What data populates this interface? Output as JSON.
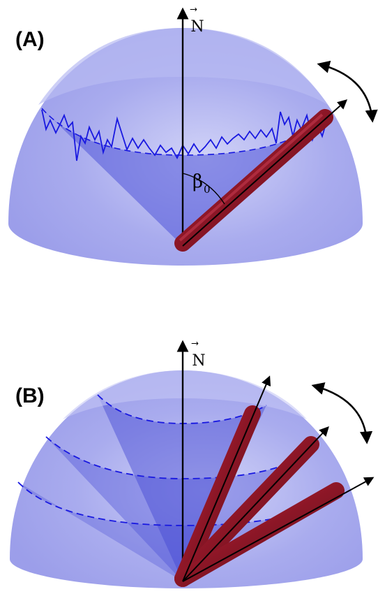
{
  "panel_a": {
    "label": "(A)",
    "axis_label": "N",
    "angle_label": "β",
    "angle_subscript": "0"
  },
  "panel_b": {
    "label": "(B)",
    "axis_label": "N"
  },
  "colors": {
    "hemisphere": "#8f92ea",
    "cone": "#5055d8",
    "rod": "#8a1626",
    "trajectory": "#1818e0",
    "arrows": "#000000"
  },
  "icons": [
    "north-arrow-icon",
    "rotation-arrow-icon"
  ]
}
